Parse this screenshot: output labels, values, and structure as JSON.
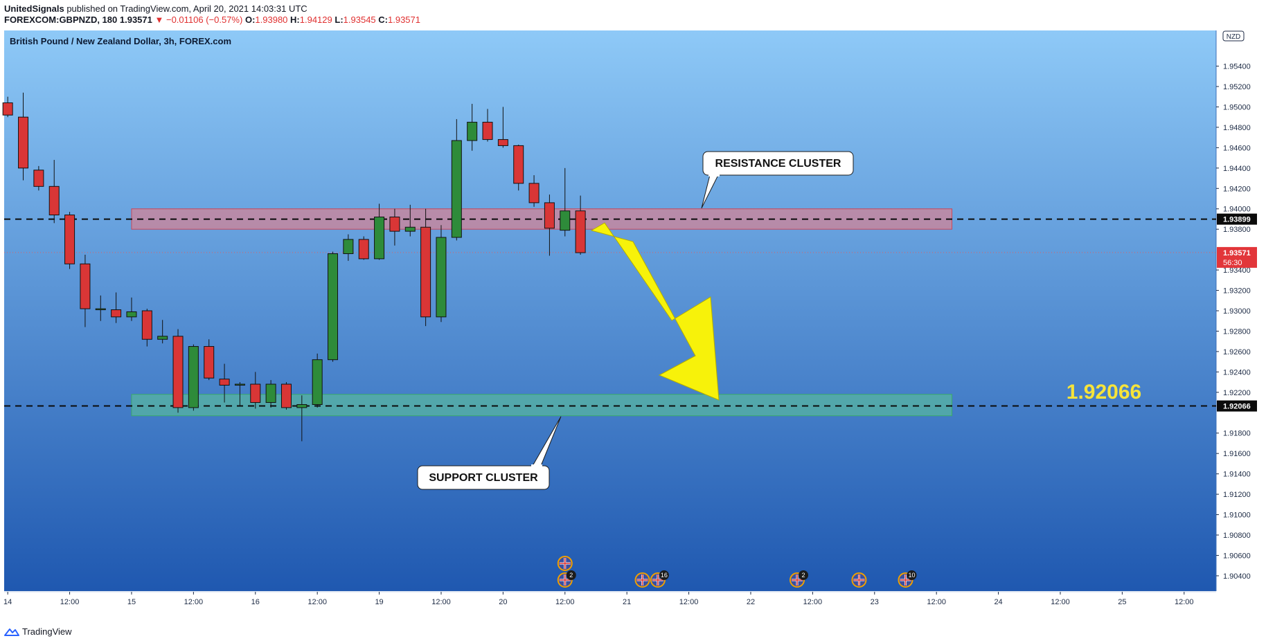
{
  "header": {
    "publisher": "UnitedSignals",
    "published_text": "published on TradingView.com, April 20, 2021 14:03:31 UTC",
    "symbol": "FOREXCOM:GBPNZD, 180",
    "last": "1.93571",
    "change": "▼ −0.01106 (−0.57%)",
    "o_label": "O:",
    "o_value": "1.93980",
    "h_label": "H:",
    "h_value": "1.94129",
    "l_label": "L:",
    "l_value": "1.93545",
    "c_label": "C:",
    "c_value": "1.93571"
  },
  "footer": {
    "brand": "TradingView"
  },
  "colors": {
    "bg_top": "#8ec9f7",
    "bg_bottom": "#1f58b0",
    "up": "#2e8b3a",
    "down": "#d93636",
    "resistance_fill": "#e87c88",
    "support_fill": "#5fcf8e",
    "arrow": "#f7f20a",
    "price_big": "#f7e43a"
  },
  "chart_data": {
    "type": "candlestick",
    "title": "British Pound / New Zealand Dollar, 3h, FOREX.com",
    "currency": "NZD",
    "ylim": [
      1.9025,
      1.9575
    ],
    "y_ticks": [
      "1.95400",
      "1.95200",
      "1.95000",
      "1.94800",
      "1.94600",
      "1.94400",
      "1.94200",
      "1.94000",
      "1.93800",
      "1.93400",
      "1.93200",
      "1.93000",
      "1.92800",
      "1.92600",
      "1.92400",
      "1.92200",
      "1.91800",
      "1.91600",
      "1.91400",
      "1.91200",
      "1.91000",
      "1.90800",
      "1.90600",
      "1.90400"
    ],
    "x_ticks": [
      {
        "label": "14",
        "i": 0.5
      },
      {
        "label": "12:00",
        "i": 4.5
      },
      {
        "label": "15",
        "i": 8.5
      },
      {
        "label": "12:00",
        "i": 12.5
      },
      {
        "label": "16",
        "i": 16.5
      },
      {
        "label": "12:00",
        "i": 20.5
      },
      {
        "label": "19",
        "i": 24.5
      },
      {
        "label": "12:00",
        "i": 28.5
      },
      {
        "label": "20",
        "i": 32.5
      },
      {
        "label": "12:00",
        "i": 36.5
      },
      {
        "label": "21",
        "i": 40.5
      },
      {
        "label": "12:00",
        "i": 44.5
      },
      {
        "label": "22",
        "i": 48.5
      },
      {
        "label": "12:00",
        "i": 52.5
      },
      {
        "label": "23",
        "i": 56.5
      },
      {
        "label": "12:00",
        "i": 60.5
      },
      {
        "label": "24",
        "i": 64.5
      },
      {
        "label": "12:00",
        "i": 68.5
      },
      {
        "label": "25",
        "i": 72.5
      },
      {
        "label": "12:00",
        "i": 76.5
      }
    ],
    "candles": [
      {
        "o": 1.9504,
        "h": 1.951,
        "l": 1.949,
        "c": 1.9492
      },
      {
        "o": 1.949,
        "h": 1.9514,
        "l": 1.9428,
        "c": 1.944
      },
      {
        "o": 1.9438,
        "h": 1.9442,
        "l": 1.9418,
        "c": 1.9422
      },
      {
        "o": 1.9422,
        "h": 1.9448,
        "l": 1.9386,
        "c": 1.9394
      },
      {
        "o": 1.9394,
        "h": 1.9397,
        "l": 1.9341,
        "c": 1.9346
      },
      {
        "o": 1.9346,
        "h": 1.9355,
        "l": 1.9284,
        "c": 1.9302
      },
      {
        "o": 1.9302,
        "h": 1.9315,
        "l": 1.929,
        "c": 1.9302
      },
      {
        "o": 1.9301,
        "h": 1.9318,
        "l": 1.9288,
        "c": 1.9294
      },
      {
        "o": 1.9294,
        "h": 1.9313,
        "l": 1.929,
        "c": 1.9299
      },
      {
        "o": 1.93,
        "h": 1.9302,
        "l": 1.9265,
        "c": 1.9272
      },
      {
        "o": 1.9272,
        "h": 1.9291,
        "l": 1.9268,
        "c": 1.9275
      },
      {
        "o": 1.9275,
        "h": 1.9282,
        "l": 1.92,
        "c": 1.9205
      },
      {
        "o": 1.9205,
        "h": 1.9267,
        "l": 1.9202,
        "c": 1.9265
      },
      {
        "o": 1.9265,
        "h": 1.9272,
        "l": 1.9232,
        "c": 1.9234
      },
      {
        "o": 1.9233,
        "h": 1.9248,
        "l": 1.921,
        "c": 1.9227
      },
      {
        "o": 1.9227,
        "h": 1.923,
        "l": 1.9206,
        "c": 1.9228
      },
      {
        "o": 1.9228,
        "h": 1.924,
        "l": 1.9204,
        "c": 1.921
      },
      {
        "o": 1.921,
        "h": 1.9232,
        "l": 1.9205,
        "c": 1.9228
      },
      {
        "o": 1.9228,
        "h": 1.923,
        "l": 1.9203,
        "c": 1.9205
      },
      {
        "o": 1.9205,
        "h": 1.9217,
        "l": 1.9172,
        "c": 1.9208
      },
      {
        "o": 1.9208,
        "h": 1.9258,
        "l": 1.9205,
        "c": 1.9252
      },
      {
        "o": 1.9252,
        "h": 1.9358,
        "l": 1.925,
        "c": 1.9356
      },
      {
        "o": 1.9356,
        "h": 1.9375,
        "l": 1.9349,
        "c": 1.937
      },
      {
        "o": 1.937,
        "h": 1.9373,
        "l": 1.935,
        "c": 1.9351
      },
      {
        "o": 1.9351,
        "h": 1.9405,
        "l": 1.935,
        "c": 1.9392
      },
      {
        "o": 1.9392,
        "h": 1.94,
        "l": 1.9364,
        "c": 1.9378
      },
      {
        "o": 1.9378,
        "h": 1.9404,
        "l": 1.9373,
        "c": 1.9382
      },
      {
        "o": 1.9382,
        "h": 1.94,
        "l": 1.9285,
        "c": 1.9294
      },
      {
        "o": 1.9294,
        "h": 1.9384,
        "l": 1.9289,
        "c": 1.9372
      },
      {
        "o": 1.9372,
        "h": 1.9488,
        "l": 1.9369,
        "c": 1.9467
      },
      {
        "o": 1.9467,
        "h": 1.9503,
        "l": 1.9457,
        "c": 1.9485
      },
      {
        "o": 1.9485,
        "h": 1.9498,
        "l": 1.9466,
        "c": 1.9468
      },
      {
        "o": 1.9468,
        "h": 1.95,
        "l": 1.946,
        "c": 1.9462
      },
      {
        "o": 1.9462,
        "h": 1.9463,
        "l": 1.9418,
        "c": 1.9425
      },
      {
        "o": 1.9425,
        "h": 1.9433,
        "l": 1.9402,
        "c": 1.9406
      },
      {
        "o": 1.9406,
        "h": 1.9414,
        "l": 1.9354,
        "c": 1.9381
      },
      {
        "o": 1.9379,
        "h": 1.944,
        "l": 1.9373,
        "c": 1.9398
      },
      {
        "o": 1.9398,
        "h": 1.9413,
        "l": 1.9355,
        "c": 1.9357
      }
    ],
    "levels": [
      {
        "name": "resistance",
        "value": 1.93899,
        "label": "1.93899"
      },
      {
        "name": "support",
        "value": 1.92066,
        "label": "1.92066"
      }
    ],
    "current_price": {
      "value": 1.93571,
      "label": "1.93571",
      "countdown": "56:30"
    },
    "zones": [
      {
        "name": "resistance-zone",
        "i0": 8.5,
        "i1": 61.5,
        "y0": 1.938,
        "y1": 1.94
      },
      {
        "name": "support-zone",
        "i0": 8.5,
        "i1": 61.5,
        "y0": 1.9197,
        "y1": 1.9218
      }
    ],
    "annotations": {
      "resistance_label": "RESISTANCE CLUSTER",
      "support_label": "SUPPORT CLUSTER",
      "target_price": "1.92066"
    },
    "events": [
      {
        "i": 36.5,
        "stack": 2,
        "count": "2"
      },
      {
        "i": 41.5,
        "stack": 1,
        "count": ""
      },
      {
        "i": 42.5,
        "stack": 1,
        "count": "16"
      },
      {
        "i": 51.5,
        "stack": 1,
        "count": "2"
      },
      {
        "i": 55.5,
        "stack": 1,
        "count": ""
      },
      {
        "i": 58.5,
        "stack": 1,
        "count": "10"
      }
    ]
  }
}
